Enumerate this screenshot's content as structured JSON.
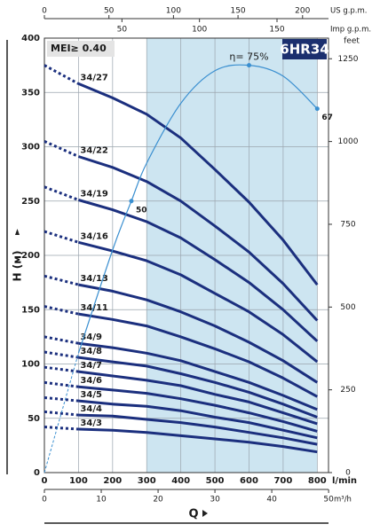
{
  "chart_data": {
    "type": "pump-curve",
    "badge": "6HR34",
    "mei_label": "MEI≥ 0.40",
    "x_label": "Q",
    "x_unit": "l/min",
    "y_label": "H (м)",
    "xlim": [
      0,
      833
    ],
    "xticks": [
      0,
      100,
      200,
      300,
      400,
      500,
      600,
      700,
      800
    ],
    "ylim": [
      0,
      400
    ],
    "yticks": [
      0,
      50,
      100,
      150,
      200,
      250,
      300,
      350,
      400
    ],
    "y2_label": "feet",
    "y2lim": [
      0,
      1312.3
    ],
    "y2ticks": [
      0,
      250,
      500,
      750,
      1000,
      1250
    ],
    "top_axis": {
      "label": "US g.p.m.",
      "lim": [
        0,
        220.1
      ],
      "ticks": [
        0,
        50,
        100,
        150,
        200
      ]
    },
    "top_axis2": {
      "label": "Imp g.p.m.",
      "lim": [
        0,
        183.2
      ],
      "ticks": [
        50,
        100,
        150
      ]
    },
    "bottom_axis2": {
      "label": "m³/h",
      "lim": [
        0,
        49.98
      ],
      "ticks": [
        0,
        10,
        20,
        30,
        40,
        50
      ]
    },
    "shaded_range": [
      300,
      800
    ],
    "shade_color": "#cde5f1",
    "grid": true,
    "x": [
      0,
      100,
      200,
      300,
      400,
      500,
      600,
      700,
      800
    ],
    "series": [
      {
        "name": "34/27",
        "color": "#1b2f7e",
        "values": [
          375,
          358,
          345,
          330,
          308,
          279,
          249,
          214,
          173
        ]
      },
      {
        "name": "34/22",
        "color": "#1b2f7e",
        "values": [
          305,
          291,
          281,
          268,
          250,
          227,
          203,
          174,
          140
        ]
      },
      {
        "name": "34/19",
        "color": "#1b2f7e",
        "values": [
          263,
          251,
          242,
          231,
          216,
          196,
          175,
          150,
          121
        ]
      },
      {
        "name": "34/16",
        "color": "#1b2f7e",
        "values": [
          222,
          212,
          204,
          195,
          182,
          165,
          148,
          127,
          102
        ]
      },
      {
        "name": "34/13",
        "color": "#1b2f7e",
        "values": [
          181,
          173,
          167,
          159,
          148,
          135,
          120,
          103,
          83
        ]
      },
      {
        "name": "34/11",
        "color": "#1b2f7e",
        "values": [
          153,
          146,
          141,
          135,
          125,
          114,
          102,
          87,
          70
        ]
      },
      {
        "name": "34/9",
        "color": "#1b2f7e",
        "values": [
          125,
          119,
          115,
          110,
          103,
          93,
          83,
          71,
          58
        ]
      },
      {
        "name": "34/8",
        "color": "#1b2f7e",
        "values": [
          111,
          106,
          102,
          98,
          91,
          83,
          74,
          63,
          51
        ]
      },
      {
        "name": "34/7",
        "color": "#1b2f7e",
        "values": [
          97,
          93,
          89,
          85,
          80,
          72,
          65,
          55,
          45
        ]
      },
      {
        "name": "34/6",
        "color": "#1b2f7e",
        "values": [
          83,
          79,
          76,
          73,
          68,
          62,
          55,
          47,
          38
        ]
      },
      {
        "name": "34/5",
        "color": "#1b2f7e",
        "values": [
          69,
          66,
          63,
          61,
          57,
          51,
          46,
          39,
          32
        ]
      },
      {
        "name": "34/4",
        "color": "#1b2f7e",
        "values": [
          56,
          53,
          52,
          49,
          46,
          42,
          37,
          32,
          26
        ]
      },
      {
        "name": "34/3",
        "color": "#1b2f7e",
        "values": [
          42,
          40,
          39,
          37,
          34,
          31,
          28,
          24,
          19
        ]
      }
    ],
    "efficiency": {
      "color": "#3a8fd0",
      "lim": [
        0,
        80
      ],
      "x": [
        0,
        100,
        200,
        255,
        300,
        400,
        500,
        600,
        700,
        800
      ],
      "values": [
        0,
        22,
        41,
        50,
        57,
        68,
        74,
        75,
        73,
        67
      ],
      "value_labels": [
        null,
        null,
        null,
        "50",
        null,
        null,
        null,
        "η= 75%",
        null,
        "67"
      ]
    }
  }
}
